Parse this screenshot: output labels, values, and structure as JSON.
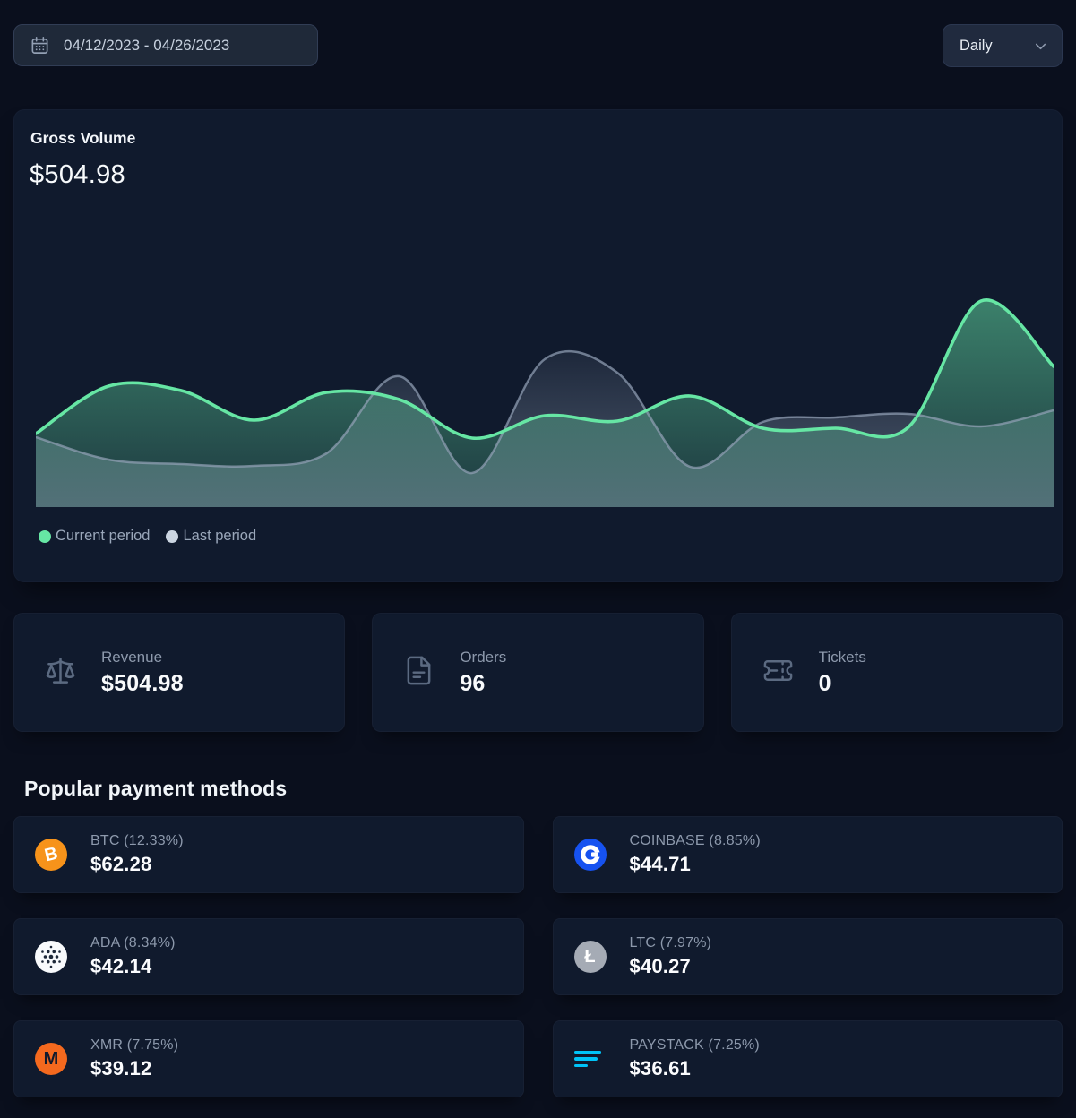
{
  "toolbar": {
    "date_range": "04/12/2023 - 04/26/2023",
    "interval_label": "Daily"
  },
  "gross_volume": {
    "title": "Gross Volume",
    "value": "$504.98",
    "legend": [
      {
        "label": "Current period",
        "color": "#66e6a4"
      },
      {
        "label": "Last period",
        "color": "#cbd5e1"
      }
    ]
  },
  "chart_data": {
    "type": "area",
    "title": "Gross Volume",
    "x_range": [
      "04/12/2023",
      "04/26/2023"
    ],
    "x_axis_visible": false,
    "y_axis_visible": false,
    "grid": false,
    "legend_position": "bottom-left",
    "value_scale": "relative height, 0-265 (no axis labels shown)",
    "series": [
      {
        "name": "Current period",
        "color": "#66e6a4",
        "values": [
          82,
          135,
          130,
          97,
          128,
          120,
          77,
          102,
          96,
          124,
          88,
          88,
          89,
          230,
          157
        ]
      },
      {
        "name": "Last period",
        "color": "#94a3b8",
        "values": [
          78,
          53,
          48,
          46,
          60,
          146,
          38,
          165,
          150,
          45,
          95,
          100,
          104,
          90,
          108
        ]
      }
    ]
  },
  "stats": [
    {
      "label": "Revenue",
      "value": "$504.98",
      "icon": "scale-icon"
    },
    {
      "label": "Orders",
      "value": "96",
      "icon": "file-icon"
    },
    {
      "label": "Tickets",
      "value": "0",
      "icon": "ticket-icon"
    }
  ],
  "payments": {
    "title": "Popular payment methods",
    "items": [
      {
        "id": "btc",
        "label": "BTC (12.33%)",
        "value": "$62.28",
        "symbol": "B",
        "icon_bg": "#f7931a"
      },
      {
        "id": "coinbase",
        "label": "COINBASE (8.85%)",
        "value": "$44.71",
        "symbol": "",
        "icon_bg": "#1652f0"
      },
      {
        "id": "ada",
        "label": "ADA (8.34%)",
        "value": "$42.14",
        "symbol": "",
        "icon_bg": "#f8fafc"
      },
      {
        "id": "ltc",
        "label": "LTC (7.97%)",
        "value": "$40.27",
        "symbol": "Ł",
        "icon_bg": "#a5abb5"
      },
      {
        "id": "xmr",
        "label": "XMR (7.75%)",
        "value": "$39.12",
        "symbol": "M",
        "icon_bg": "#f4691e"
      },
      {
        "id": "paystack",
        "label": "PAYSTACK (7.25%)",
        "value": "$36.61",
        "symbol": "",
        "icon_bg": "transparent",
        "accent": "#00c3f7"
      }
    ]
  },
  "colors": {
    "page_bg": "#0a0f1d",
    "card_bg": "#101a2d",
    "accent_green": "#66e6a4",
    "muted_gray": "#94a3b8"
  }
}
